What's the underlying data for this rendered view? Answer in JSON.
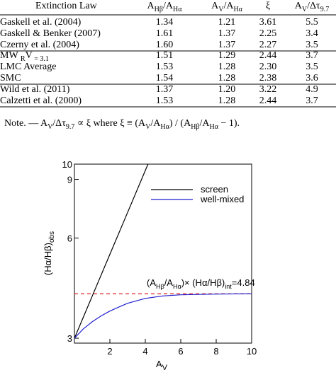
{
  "table": {
    "headers": [
      [
        "Extinction Law"
      ],
      [
        "A",
        "Hβ",
        "/A",
        "Hα"
      ],
      [
        "A",
        "V",
        "/A",
        "Hα"
      ],
      [
        "ξ"
      ],
      [
        "A",
        "V",
        "/Δτ",
        "9.7"
      ]
    ],
    "rows": [
      {
        "label": [
          "Gaskell et al. (2004)"
        ],
        "values": [
          "1.34",
          "1.21",
          "3.61",
          "5.5"
        ]
      },
      {
        "label": [
          "Gaskell & Benker (2007)"
        ],
        "values": [
          "1.61",
          "1.37",
          "2.25",
          "3.4"
        ]
      },
      {
        "label": [
          "Czerny et al. (2004)"
        ],
        "values": [
          "1.60",
          "1.37",
          "2.27",
          "3.5"
        ]
      },
      {
        "label": [
          "MW ",
          "R",
          "V",
          " = 3.1"
        ],
        "values": [
          "1.51",
          "1.29",
          "2.44",
          "3.7"
        ]
      },
      {
        "label": [
          "LMC Average"
        ],
        "values": [
          "1.53",
          "1.28",
          "2.30",
          "3.5"
        ]
      },
      {
        "label": [
          "SMC"
        ],
        "values": [
          "1.54",
          "1.28",
          "2.38",
          "3.6"
        ]
      },
      {
        "label": [
          "Wild et al. (2011)"
        ],
        "values": [
          "1.37",
          "1.20",
          "3.22",
          "4.9"
        ]
      },
      {
        "label": [
          "Calzetti et al. (2000)"
        ],
        "values": [
          "1.53",
          "1.28",
          "2.44",
          "3.7"
        ]
      }
    ],
    "note": [
      "Note. — A",
      "V",
      "/Δτ",
      "9.7",
      " ∝ ξ where ξ ≡ (A",
      "V",
      "/A",
      "Hα",
      ") / (A",
      "Hβ",
      "/A",
      "Hα",
      " − 1)."
    ]
  },
  "chart_data": {
    "type": "line",
    "xlabel": [
      "A",
      "V"
    ],
    "ylabel": [
      "(Hα/Hβ)",
      "obs"
    ],
    "xlim": [
      0,
      10
    ],
    "xticks": [
      2,
      4,
      6,
      8,
      10
    ],
    "ylim": [
      2.9,
      10
    ],
    "yticks": [
      3,
      6,
      9,
      10
    ],
    "log_y": true,
    "series": [
      {
        "name": "screen",
        "color": "#000000",
        "x": [
          0,
          1,
          2,
          3,
          4,
          4.15
        ],
        "values": [
          3.0,
          4.01,
          5.36,
          7.16,
          9.57,
          10
        ]
      },
      {
        "name": "well-mixed",
        "color": "#1f1fd0",
        "x": [
          0,
          0.5,
          1,
          1.5,
          2,
          2.5,
          3,
          4,
          5,
          6,
          8,
          10
        ],
        "values": [
          3.0,
          3.2,
          3.36,
          3.5,
          3.62,
          3.72,
          3.82,
          3.95,
          4.02,
          4.05,
          4.07,
          4.08
        ]
      }
    ],
    "reference_line": {
      "value": 4.08,
      "color": "#e02020"
    },
    "annotation": [
      "(A",
      "Hβ",
      "/A",
      "Hα",
      ")× (Hα/Hβ)",
      "int",
      "=4.84"
    ]
  }
}
